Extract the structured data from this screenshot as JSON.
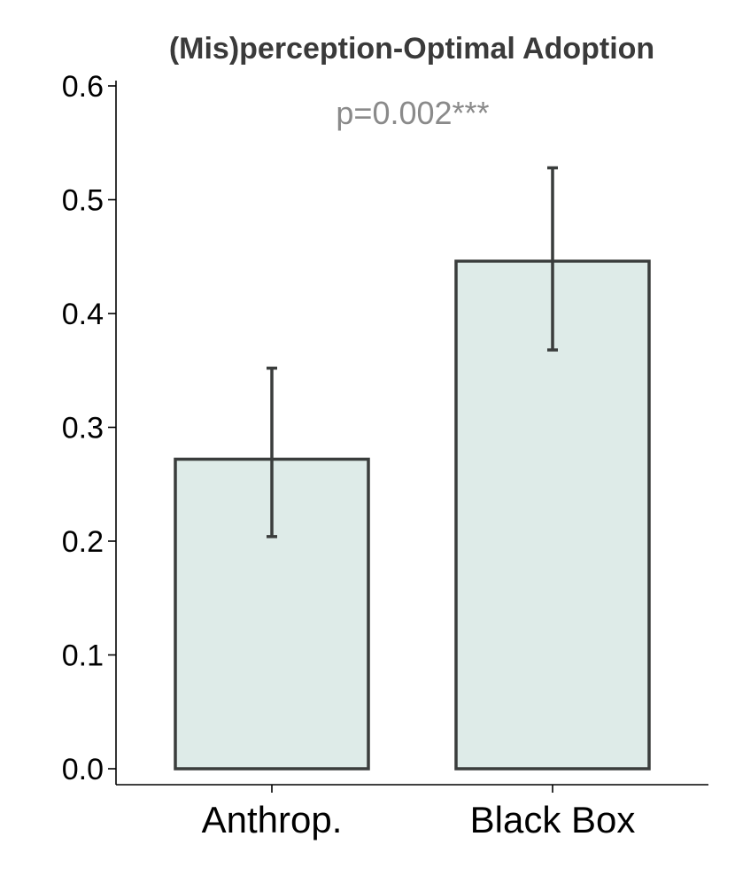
{
  "chart_data": {
    "type": "bar",
    "title": "(Mis)perception-Optimal Adoption",
    "categories": [
      "Anthrop.",
      "Black Box"
    ],
    "values": [
      0.272,
      0.446
    ],
    "error_low": [
      0.204,
      0.368
    ],
    "error_high": [
      0.352,
      0.528
    ],
    "ylim": [
      0,
      0.6
    ],
    "yticks": [
      0.0,
      0.1,
      0.2,
      0.3,
      0.4,
      0.5,
      0.6
    ],
    "ytick_labels": [
      "0.0",
      "0.1",
      "0.2",
      "0.3",
      "0.4",
      "0.5",
      "0.6"
    ],
    "xlabel": "",
    "ylabel": "",
    "annotation": "p=0.002***",
    "grid": false,
    "bar_fill": "#deebe8",
    "bar_stroke": "#3a3d3c",
    "annotation_color": "#8a8a8a"
  }
}
